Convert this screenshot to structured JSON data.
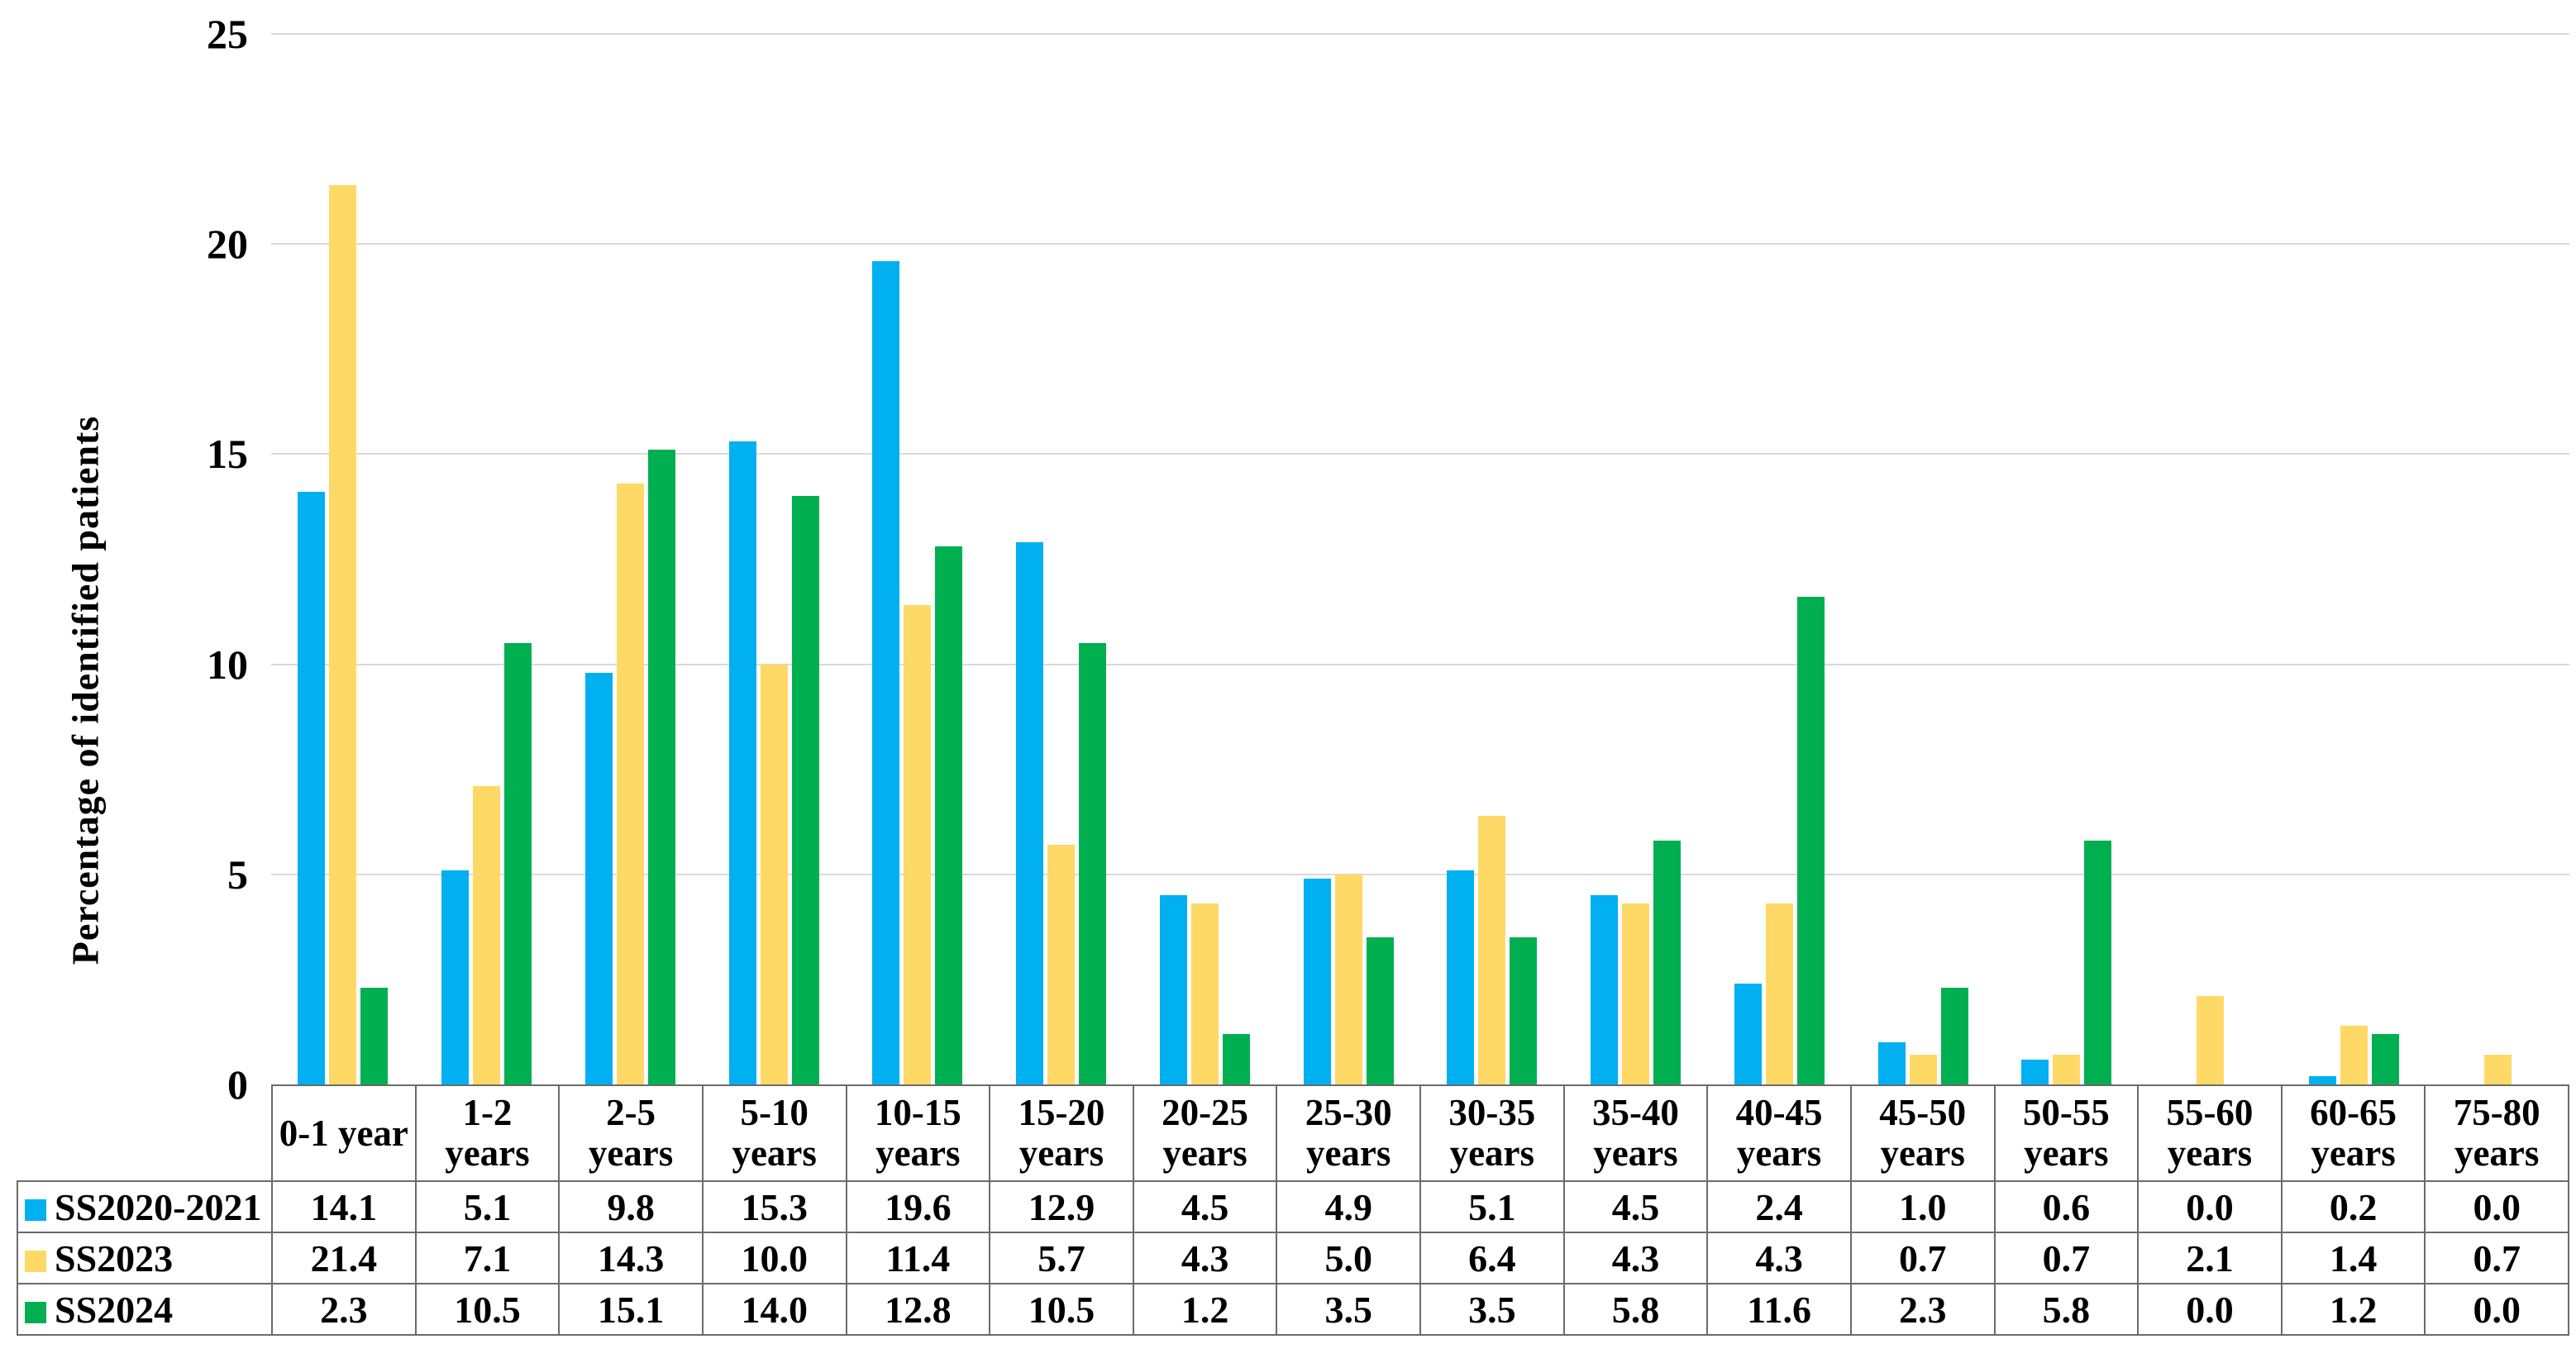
{
  "chart_data": {
    "type": "bar",
    "title": "",
    "xlabel": "",
    "ylabel": "Percentage of identified patients",
    "ylim": [
      0,
      25
    ],
    "yticks": [
      0,
      5,
      10,
      15,
      20,
      25
    ],
    "grid": true,
    "legend_position": "table-left",
    "categories": [
      "0-1 year",
      "1-2 years",
      "2-5 years",
      "5-10 years",
      "10-15 years",
      "15-20 years",
      "20-25 years",
      "25-30 years",
      "30-35 years",
      "35-40 years",
      "40-45 years",
      "45-50 years",
      "50-55 years",
      "55-60 years",
      "60-65 years",
      "75-80 years"
    ],
    "series": [
      {
        "name": "SS2020-2021",
        "color": "#00B0F0",
        "values": [
          14.1,
          5.1,
          9.8,
          15.3,
          19.6,
          12.9,
          4.5,
          4.9,
          5.1,
          4.5,
          2.4,
          1.0,
          0.6,
          0.0,
          0.2,
          0.0
        ]
      },
      {
        "name": "SS2023",
        "color": "#FFD966",
        "values": [
          21.4,
          7.1,
          14.3,
          10.0,
          11.4,
          5.7,
          4.3,
          5.0,
          6.4,
          4.3,
          4.3,
          0.7,
          0.7,
          2.1,
          1.4,
          0.7
        ]
      },
      {
        "name": "SS2024",
        "color": "#00B050",
        "values": [
          2.3,
          10.5,
          15.1,
          14.0,
          12.8,
          10.5,
          1.2,
          3.5,
          3.5,
          5.8,
          11.6,
          2.3,
          5.8,
          0.0,
          1.2,
          0.0
        ]
      }
    ],
    "value_decimals": 1
  },
  "colors": {
    "background": "#FFFFFF",
    "gridline": "#D9D9D9",
    "table_border": "#6B6B6B",
    "text": "#000000"
  }
}
